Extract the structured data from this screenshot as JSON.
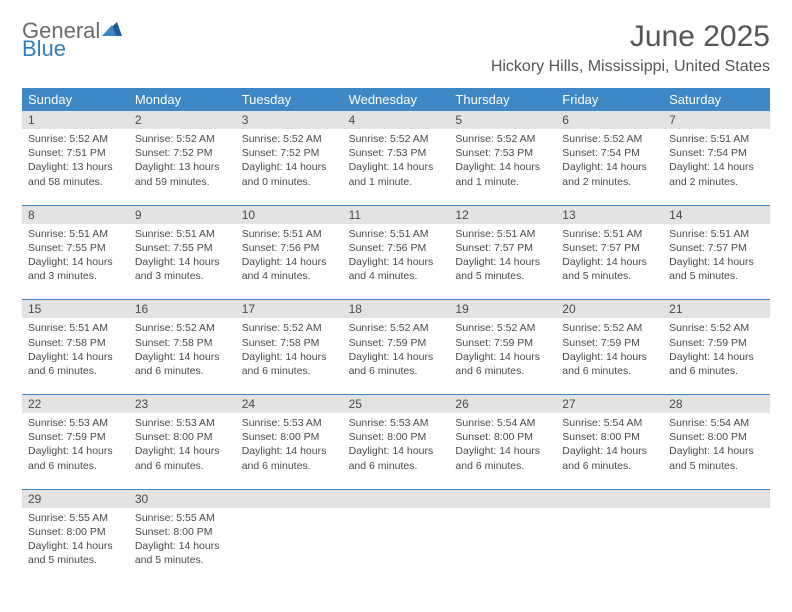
{
  "colors": {
    "header_bg": "#3d87c6",
    "header_text": "#ffffff",
    "daynum_bg": "#e3e3e3",
    "text": "#4a4a4a",
    "rule": "#3d87c6",
    "logo_gray": "#6b6b6b",
    "logo_blue": "#2f7fc2",
    "background": "#ffffff"
  },
  "typography": {
    "title_fontsize": 30,
    "location_fontsize": 16,
    "weekday_fontsize": 13,
    "daynum_fontsize": 12,
    "body_fontsize": 10.5,
    "font_family": "Arial"
  },
  "logo": {
    "line1": "General",
    "line2": "Blue"
  },
  "title": "June 2025",
  "location": "Hickory Hills, Mississippi, United States",
  "calendar": {
    "type": "table",
    "weekdays": [
      "Sunday",
      "Monday",
      "Tuesday",
      "Wednesday",
      "Thursday",
      "Friday",
      "Saturday"
    ],
    "weeks": [
      [
        {
          "day": "1",
          "sunrise": "Sunrise: 5:52 AM",
          "sunset": "Sunset: 7:51 PM",
          "daylight": "Daylight: 13 hours and 58 minutes."
        },
        {
          "day": "2",
          "sunrise": "Sunrise: 5:52 AM",
          "sunset": "Sunset: 7:52 PM",
          "daylight": "Daylight: 13 hours and 59 minutes."
        },
        {
          "day": "3",
          "sunrise": "Sunrise: 5:52 AM",
          "sunset": "Sunset: 7:52 PM",
          "daylight": "Daylight: 14 hours and 0 minutes."
        },
        {
          "day": "4",
          "sunrise": "Sunrise: 5:52 AM",
          "sunset": "Sunset: 7:53 PM",
          "daylight": "Daylight: 14 hours and 1 minute."
        },
        {
          "day": "5",
          "sunrise": "Sunrise: 5:52 AM",
          "sunset": "Sunset: 7:53 PM",
          "daylight": "Daylight: 14 hours and 1 minute."
        },
        {
          "day": "6",
          "sunrise": "Sunrise: 5:52 AM",
          "sunset": "Sunset: 7:54 PM",
          "daylight": "Daylight: 14 hours and 2 minutes."
        },
        {
          "day": "7",
          "sunrise": "Sunrise: 5:51 AM",
          "sunset": "Sunset: 7:54 PM",
          "daylight": "Daylight: 14 hours and 2 minutes."
        }
      ],
      [
        {
          "day": "8",
          "sunrise": "Sunrise: 5:51 AM",
          "sunset": "Sunset: 7:55 PM",
          "daylight": "Daylight: 14 hours and 3 minutes."
        },
        {
          "day": "9",
          "sunrise": "Sunrise: 5:51 AM",
          "sunset": "Sunset: 7:55 PM",
          "daylight": "Daylight: 14 hours and 3 minutes."
        },
        {
          "day": "10",
          "sunrise": "Sunrise: 5:51 AM",
          "sunset": "Sunset: 7:56 PM",
          "daylight": "Daylight: 14 hours and 4 minutes."
        },
        {
          "day": "11",
          "sunrise": "Sunrise: 5:51 AM",
          "sunset": "Sunset: 7:56 PM",
          "daylight": "Daylight: 14 hours and 4 minutes."
        },
        {
          "day": "12",
          "sunrise": "Sunrise: 5:51 AM",
          "sunset": "Sunset: 7:57 PM",
          "daylight": "Daylight: 14 hours and 5 minutes."
        },
        {
          "day": "13",
          "sunrise": "Sunrise: 5:51 AM",
          "sunset": "Sunset: 7:57 PM",
          "daylight": "Daylight: 14 hours and 5 minutes."
        },
        {
          "day": "14",
          "sunrise": "Sunrise: 5:51 AM",
          "sunset": "Sunset: 7:57 PM",
          "daylight": "Daylight: 14 hours and 5 minutes."
        }
      ],
      [
        {
          "day": "15",
          "sunrise": "Sunrise: 5:51 AM",
          "sunset": "Sunset: 7:58 PM",
          "daylight": "Daylight: 14 hours and 6 minutes."
        },
        {
          "day": "16",
          "sunrise": "Sunrise: 5:52 AM",
          "sunset": "Sunset: 7:58 PM",
          "daylight": "Daylight: 14 hours and 6 minutes."
        },
        {
          "day": "17",
          "sunrise": "Sunrise: 5:52 AM",
          "sunset": "Sunset: 7:58 PM",
          "daylight": "Daylight: 14 hours and 6 minutes."
        },
        {
          "day": "18",
          "sunrise": "Sunrise: 5:52 AM",
          "sunset": "Sunset: 7:59 PM",
          "daylight": "Daylight: 14 hours and 6 minutes."
        },
        {
          "day": "19",
          "sunrise": "Sunrise: 5:52 AM",
          "sunset": "Sunset: 7:59 PM",
          "daylight": "Daylight: 14 hours and 6 minutes."
        },
        {
          "day": "20",
          "sunrise": "Sunrise: 5:52 AM",
          "sunset": "Sunset: 7:59 PM",
          "daylight": "Daylight: 14 hours and 6 minutes."
        },
        {
          "day": "21",
          "sunrise": "Sunrise: 5:52 AM",
          "sunset": "Sunset: 7:59 PM",
          "daylight": "Daylight: 14 hours and 6 minutes."
        }
      ],
      [
        {
          "day": "22",
          "sunrise": "Sunrise: 5:53 AM",
          "sunset": "Sunset: 7:59 PM",
          "daylight": "Daylight: 14 hours and 6 minutes."
        },
        {
          "day": "23",
          "sunrise": "Sunrise: 5:53 AM",
          "sunset": "Sunset: 8:00 PM",
          "daylight": "Daylight: 14 hours and 6 minutes."
        },
        {
          "day": "24",
          "sunrise": "Sunrise: 5:53 AM",
          "sunset": "Sunset: 8:00 PM",
          "daylight": "Daylight: 14 hours and 6 minutes."
        },
        {
          "day": "25",
          "sunrise": "Sunrise: 5:53 AM",
          "sunset": "Sunset: 8:00 PM",
          "daylight": "Daylight: 14 hours and 6 minutes."
        },
        {
          "day": "26",
          "sunrise": "Sunrise: 5:54 AM",
          "sunset": "Sunset: 8:00 PM",
          "daylight": "Daylight: 14 hours and 6 minutes."
        },
        {
          "day": "27",
          "sunrise": "Sunrise: 5:54 AM",
          "sunset": "Sunset: 8:00 PM",
          "daylight": "Daylight: 14 hours and 6 minutes."
        },
        {
          "day": "28",
          "sunrise": "Sunrise: 5:54 AM",
          "sunset": "Sunset: 8:00 PM",
          "daylight": "Daylight: 14 hours and 5 minutes."
        }
      ],
      [
        {
          "day": "29",
          "sunrise": "Sunrise: 5:55 AM",
          "sunset": "Sunset: 8:00 PM",
          "daylight": "Daylight: 14 hours and 5 minutes."
        },
        {
          "day": "30",
          "sunrise": "Sunrise: 5:55 AM",
          "sunset": "Sunset: 8:00 PM",
          "daylight": "Daylight: 14 hours and 5 minutes."
        },
        null,
        null,
        null,
        null,
        null
      ]
    ]
  }
}
